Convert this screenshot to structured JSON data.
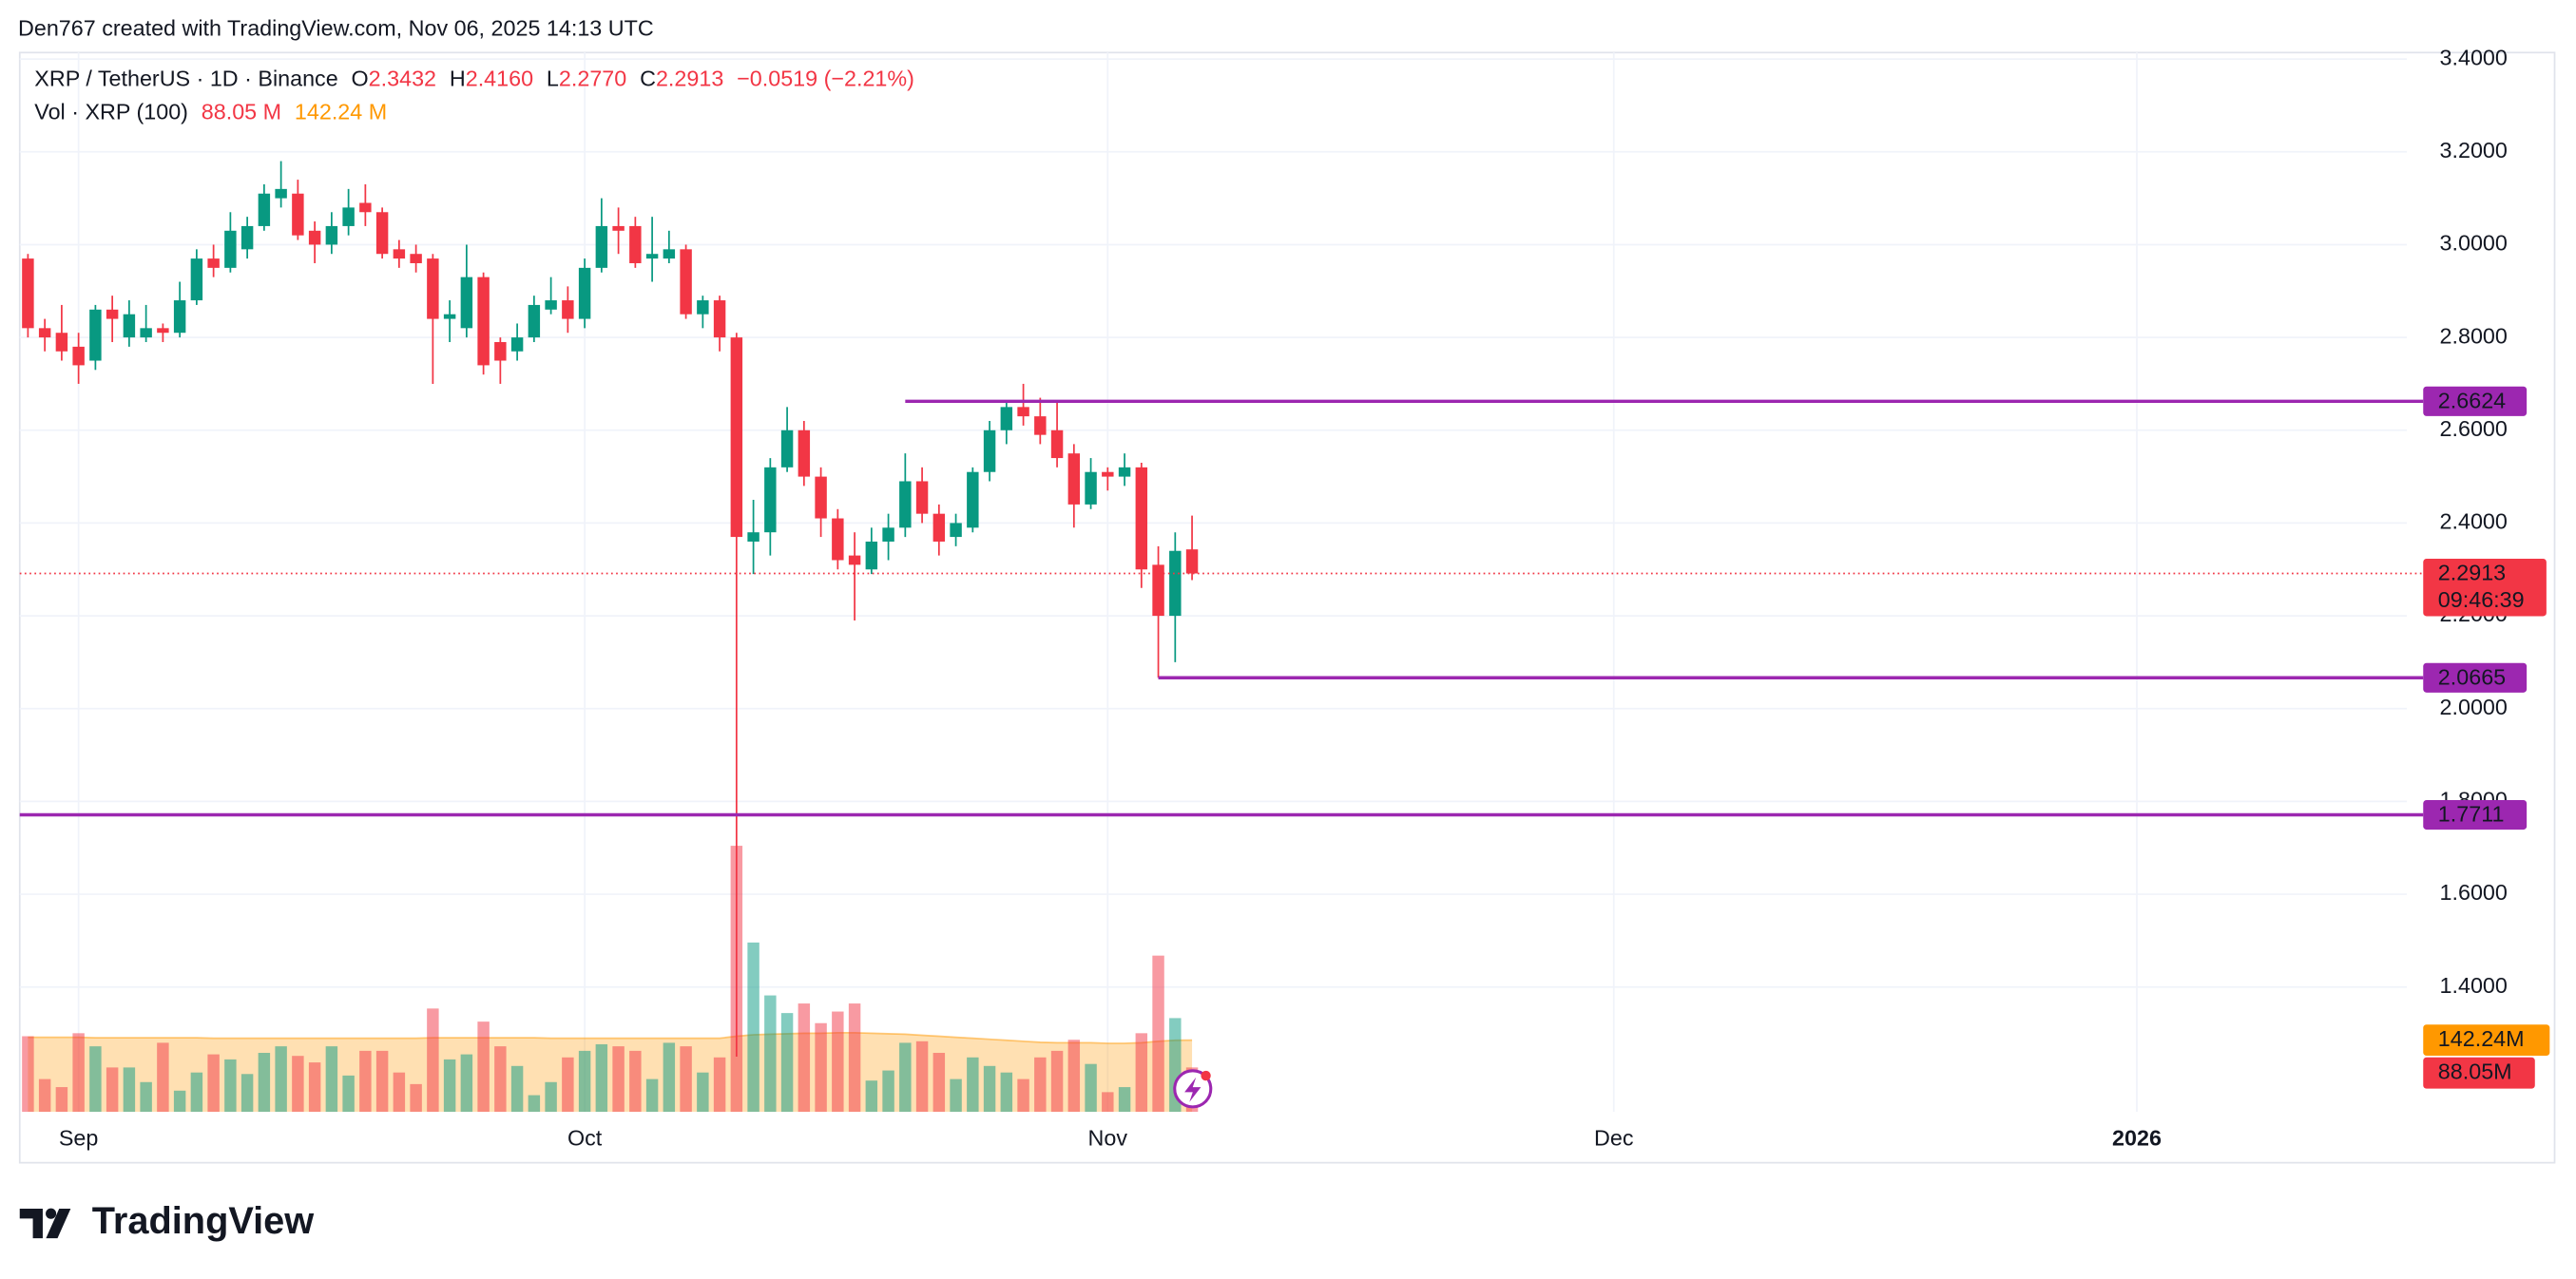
{
  "header": {
    "credit": "Den767 created with TradingView.com, Nov 06, 2025 14:13 UTC"
  },
  "footer": {
    "brand": "TradingView"
  },
  "chart_data": {
    "type": "candlestick",
    "legend": {
      "symbol": "XRP / TetherUS · 1D · Binance",
      "o_key": "O",
      "o": "2.3432",
      "h_key": "H",
      "h": "2.4160",
      "l_key": "L",
      "l": "2.2770",
      "c_key": "C",
      "c": "2.2913",
      "change": "−0.0519 (−2.21%)",
      "volume": "Vol · XRP (100)",
      "volume_value": "88.05 M",
      "volume_ma": "142.24 M"
    },
    "axis_labels": {
      "volume_ma": "142.24M",
      "volume": "88.05M",
      "countdown": "09:46:39"
    },
    "x": [
      0,
      1,
      2,
      3,
      4,
      5,
      6,
      7,
      8,
      9,
      10,
      11,
      12,
      13,
      14,
      15,
      16,
      17,
      18,
      19,
      20,
      21,
      22,
      23,
      24,
      25,
      26,
      27,
      28,
      29,
      30,
      31,
      32,
      33,
      34,
      35,
      36,
      37,
      38,
      39,
      40,
      41,
      42,
      43,
      44,
      45,
      46,
      47,
      48,
      49,
      50,
      51,
      52,
      53,
      54,
      55,
      56,
      57,
      58,
      59,
      60,
      61,
      62,
      63,
      64,
      65,
      66,
      67,
      68,
      69
    ],
    "open": [
      2.97,
      2.82,
      2.81,
      2.78,
      2.75,
      2.86,
      2.8,
      2.8,
      2.82,
      2.81,
      2.88,
      2.97,
      2.95,
      2.99,
      3.04,
      3.1,
      3.11,
      3.03,
      3.0,
      3.04,
      3.09,
      3.07,
      2.99,
      2.98,
      2.97,
      2.84,
      2.82,
      2.93,
      2.79,
      2.77,
      2.8,
      2.86,
      2.88,
      2.84,
      2.95,
      3.04,
      3.04,
      2.97,
      2.97,
      2.99,
      2.85,
      2.88,
      2.8,
      2.36,
      2.38,
      2.52,
      2.6,
      2.5,
      2.41,
      2.33,
      2.3,
      2.36,
      2.39,
      2.49,
      2.42,
      2.37,
      2.39,
      2.51,
      2.6,
      2.65,
      2.63,
      2.6,
      2.55,
      2.44,
      2.51,
      2.5,
      2.52,
      2.31,
      2.2,
      2.3432
    ],
    "high": [
      2.98,
      2.84,
      2.87,
      2.81,
      2.87,
      2.89,
      2.88,
      2.87,
      2.83,
      2.92,
      2.99,
      3.0,
      3.07,
      3.06,
      3.13,
      3.18,
      3.14,
      3.05,
      3.07,
      3.12,
      3.13,
      3.08,
      3.01,
      3.0,
      2.98,
      2.88,
      3.0,
      2.94,
      2.8,
      2.83,
      2.89,
      2.93,
      2.91,
      2.97,
      3.1,
      3.08,
      3.06,
      3.06,
      3.03,
      3.0,
      2.89,
      2.89,
      2.81,
      2.45,
      2.54,
      2.65,
      2.62,
      2.52,
      2.43,
      2.38,
      2.39,
      2.42,
      2.55,
      2.52,
      2.44,
      2.42,
      2.52,
      2.62,
      2.66,
      2.7,
      2.67,
      2.66,
      2.57,
      2.54,
      2.52,
      2.55,
      2.53,
      2.35,
      2.38,
      2.416
    ],
    "low": [
      2.8,
      2.77,
      2.75,
      2.7,
      2.73,
      2.79,
      2.78,
      2.79,
      2.79,
      2.8,
      2.87,
      2.93,
      2.94,
      2.97,
      3.03,
      3.08,
      3.01,
      2.96,
      2.98,
      3.02,
      3.04,
      2.97,
      2.95,
      2.94,
      2.7,
      2.79,
      2.8,
      2.72,
      2.7,
      2.75,
      2.79,
      2.85,
      2.81,
      2.82,
      2.94,
      2.98,
      2.95,
      2.92,
      2.96,
      2.84,
      2.82,
      2.77,
      1.25,
      2.29,
      2.33,
      2.51,
      2.48,
      2.37,
      2.3,
      2.19,
      2.29,
      2.32,
      2.37,
      2.4,
      2.33,
      2.35,
      2.38,
      2.49,
      2.57,
      2.61,
      2.57,
      2.52,
      2.39,
      2.43,
      2.47,
      2.48,
      2.26,
      2.0665,
      2.1,
      2.277
    ],
    "close": [
      2.82,
      2.8,
      2.77,
      2.74,
      2.86,
      2.84,
      2.85,
      2.82,
      2.81,
      2.88,
      2.97,
      2.95,
      3.03,
      3.04,
      3.11,
      3.12,
      3.02,
      3.0,
      3.04,
      3.08,
      3.07,
      2.98,
      2.97,
      2.96,
      2.84,
      2.85,
      2.93,
      2.74,
      2.75,
      2.8,
      2.87,
      2.88,
      2.84,
      2.95,
      3.04,
      3.03,
      2.96,
      2.98,
      2.99,
      2.85,
      2.88,
      2.8,
      2.37,
      2.38,
      2.52,
      2.6,
      2.5,
      2.41,
      2.32,
      2.31,
      2.36,
      2.39,
      2.49,
      2.42,
      2.36,
      2.4,
      2.51,
      2.6,
      2.65,
      2.63,
      2.59,
      2.54,
      2.44,
      2.51,
      2.5,
      2.52,
      2.3,
      2.2,
      2.34,
      2.2913
    ],
    "volume": [
      150,
      65,
      49,
      156,
      130,
      88,
      88,
      59,
      137,
      42,
      78,
      114,
      104,
      75,
      117,
      130,
      111,
      98,
      130,
      72,
      121,
      121,
      78,
      55,
      205,
      104,
      114,
      179,
      130,
      91,
      33,
      59,
      108,
      121,
      134,
      130,
      121,
      65,
      137,
      130,
      78,
      108,
      528,
      336,
      231,
      196,
      215,
      176,
      199,
      215,
      62,
      82,
      137,
      140,
      117,
      65,
      108,
      91,
      78,
      65,
      108,
      121,
      143,
      95,
      39,
      49,
      156,
      310,
      186,
      88.05
    ],
    "volume_ma": [
      148,
      148,
      148,
      148,
      147,
      147,
      147,
      147,
      147,
      147,
      147,
      146,
      146,
      146,
      146,
      146,
      146,
      146,
      146,
      146,
      146,
      146,
      146,
      146,
      147,
      147,
      147,
      147,
      147,
      147,
      147,
      146,
      146,
      146,
      146,
      146,
      146,
      146,
      146,
      146,
      146,
      146,
      150,
      153,
      154,
      155,
      156,
      156,
      157,
      157,
      156,
      155,
      154,
      152,
      150,
      148,
      146,
      144,
      142,
      140,
      138,
      137,
      137,
      137,
      136,
      136,
      137,
      140,
      142,
      142.24
    ],
    "up_color": "#089981",
    "down_color": "#f23645",
    "volume_ma_color": "#ff9800",
    "level_color": "#9c27b0",
    "levels": [
      {
        "value": 2.6624,
        "start": 52
      },
      {
        "value": 2.0665,
        "start": 67
      },
      {
        "value": 1.7711
      }
    ],
    "xlim": [
      -0.487,
      141.0
    ],
    "xticks": [
      {
        "value": 3,
        "label": "Sep"
      },
      {
        "value": 33,
        "label": "Oct"
      },
      {
        "value": 64,
        "label": "Nov"
      },
      {
        "value": 94,
        "label": "Dec"
      },
      {
        "value": 125,
        "label": "2026"
      }
    ],
    "ylim": [
      1.131,
      3.414
    ],
    "yticks": [
      {
        "value": 1.4,
        "label": "1.4000"
      },
      {
        "value": 1.6,
        "label": "1.6000"
      },
      {
        "value": 1.8,
        "label": "1.8000"
      },
      {
        "value": 2.0,
        "label": "2.0000"
      },
      {
        "value": 2.2,
        "label": "2.2000"
      },
      {
        "value": 2.4,
        "label": "2.4000"
      },
      {
        "value": 2.6,
        "label": "2.6000"
      },
      {
        "value": 2.8,
        "label": "2.8000"
      },
      {
        "value": 3.0,
        "label": "3.0000"
      },
      {
        "value": 3.2,
        "label": "3.2000"
      },
      {
        "value": 3.4,
        "label": "3.4000"
      }
    ],
    "grid": true
  }
}
